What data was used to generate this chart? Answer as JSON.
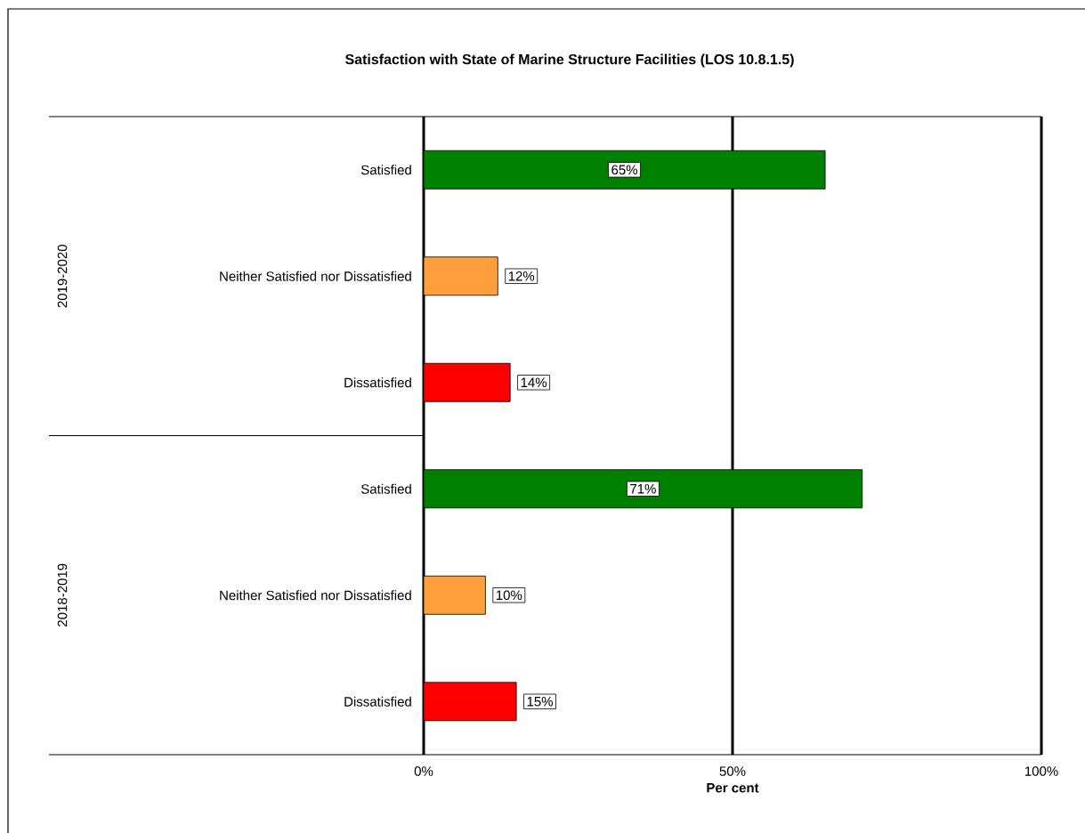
{
  "chart_data": {
    "type": "bar",
    "orientation": "horizontal",
    "title": "Satisfaction with State of Marine Structure Facilities (LOS 10.8.1.5)",
    "xlabel": "Per cent",
    "categories": [
      "Satisfied",
      "Neither Satisfied nor Dissatisfied",
      "Dissatisfied",
      "Satisfied",
      "Neither Satisfied nor Dissatisfied",
      "Dissatisfied"
    ],
    "values": [
      65,
      12,
      14,
      71,
      10,
      15
    ],
    "colors": [
      "#008000",
      "#ff9f3c",
      "#ff0000",
      "#008000",
      "#ff9f3c",
      "#ff0000"
    ],
    "value_labels": [
      "65%",
      "12%",
      "14%",
      "71%",
      "10%",
      "15%"
    ],
    "annotations": [
      "2019-2020",
      "2018-2019"
    ],
    "xlim": [
      0,
      100
    ],
    "xticks": [
      {
        "value": 0,
        "label": "0%"
      },
      {
        "value": 50,
        "label": "50%"
      },
      {
        "value": 100,
        "label": "100%"
      }
    ],
    "grid": "x"
  }
}
